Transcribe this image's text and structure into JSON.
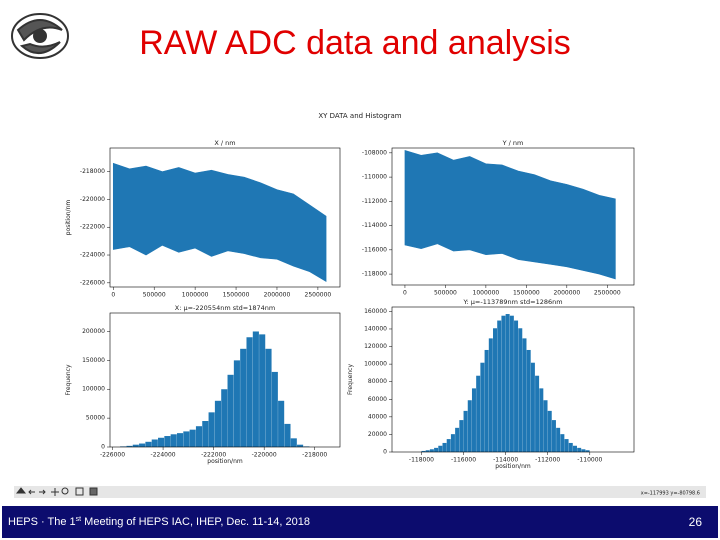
{
  "slide": {
    "title": "RAW ADC data and analysis",
    "footer": {
      "before": "HEPS · The 1",
      "sup": "st",
      "after": " Meeting of HEPS IAC, IHEP, Dec. 11-14, 2018"
    },
    "page": "26"
  },
  "figure": {
    "title": "XY DATA and Histogram",
    "status": "x=-117993  y=-80798.6"
  },
  "chart_data": [
    {
      "type": "band",
      "title": "X / nm",
      "ylabel": "position/nm",
      "color": "#1f77b4",
      "x": [
        0,
        200000,
        400000,
        600000,
        800000,
        1000000,
        1200000,
        1400000,
        1600000,
        1800000,
        2000000,
        2200000,
        2400000,
        2600000
      ],
      "upper": [
        -217400,
        -217800,
        -217600,
        -218000,
        -217700,
        -218100,
        -217900,
        -218200,
        -218400,
        -218800,
        -219300,
        -219600,
        -220400,
        -221200
      ],
      "lower": [
        -223600,
        -223400,
        -224000,
        -223300,
        -223800,
        -223500,
        -224100,
        -223700,
        -223900,
        -224200,
        -224300,
        -224800,
        -225200,
        -225900
      ],
      "xlim": [
        -40000,
        2770000
      ],
      "ylim": [
        -226300,
        -216300
      ],
      "xticks": [
        0,
        500000,
        1000000,
        1500000,
        2000000,
        2500000
      ],
      "yticks": [
        -218000,
        -220000,
        -222000,
        -224000,
        -226000
      ]
    },
    {
      "type": "band",
      "title": "Y / nm",
      "color": "#1f77b4",
      "x": [
        0,
        200000,
        400000,
        600000,
        800000,
        1000000,
        1200000,
        1400000,
        1600000,
        1800000,
        2000000,
        2200000,
        2400000,
        2600000
      ],
      "upper": [
        -107800,
        -108200,
        -108000,
        -108600,
        -108300,
        -108900,
        -109000,
        -109500,
        -109800,
        -110300,
        -110600,
        -111000,
        -111500,
        -111800
      ],
      "lower": [
        -115600,
        -115900,
        -115500,
        -116100,
        -116000,
        -116400,
        -116300,
        -116800,
        -117000,
        -117200,
        -117400,
        -117700,
        -118000,
        -118400
      ],
      "xlim": [
        -160000,
        2830000
      ],
      "ylim": [
        -118900,
        -107600
      ],
      "xticks": [
        0,
        500000,
        1000000,
        1500000,
        2000000,
        2500000
      ],
      "yticks": [
        -108000,
        -110000,
        -112000,
        -114000,
        -116000,
        -118000
      ]
    },
    {
      "type": "histogram",
      "title": "X: μ=-220554nm std=1874nm",
      "xlabel": "position/nm",
      "ylabel": "Frequency",
      "color": "#1f77b4",
      "bins": [
        -225700,
        -225450,
        -225200,
        -224950,
        -224700,
        -224450,
        -224200,
        -223950,
        -223700,
        -223450,
        -223200,
        -222950,
        -222700,
        -222450,
        -222200,
        -221950,
        -221700,
        -221450,
        -221200,
        -220950,
        -220700,
        -220450,
        -220200,
        -219950,
        -219700,
        -219450,
        -219200,
        -218950,
        -218700,
        -218450,
        -218200
      ],
      "values": [
        1000,
        2000,
        4000,
        6000,
        9000,
        13000,
        16000,
        19000,
        22000,
        24000,
        27000,
        30000,
        36000,
        45000,
        60000,
        80000,
        100000,
        125000,
        150000,
        170000,
        190000,
        200000,
        195000,
        170000,
        130000,
        80000,
        40000,
        15000,
        4000,
        1000
      ],
      "xlim": [
        -226100,
        -217000
      ],
      "ylim": [
        0,
        232000
      ],
      "xticks": [
        -226000,
        -224000,
        -222000,
        -220000,
        -218000
      ],
      "yticks": [
        0,
        50000,
        100000,
        150000,
        200000
      ]
    },
    {
      "type": "histogram",
      "title": "Y: μ=-113789nm std=1286nm",
      "xlabel": "position/nm",
      "ylabel": "Frequency",
      "color": "#1f77b4",
      "bins": [
        -118000,
        -117800,
        -117600,
        -117400,
        -117200,
        -117000,
        -116800,
        -116600,
        -116400,
        -116200,
        -116000,
        -115800,
        -115600,
        -115400,
        -115200,
        -115000,
        -114800,
        -114600,
        -114400,
        -114200,
        -114000,
        -113800,
        -113600,
        -113400,
        -113200,
        -113000,
        -112800,
        -112600,
        -112400,
        -112200,
        -112000,
        -111800,
        -111600,
        -111400,
        -111200,
        -111000,
        -110800,
        -110600,
        -110400,
        -110200,
        -110000
      ],
      "values": [
        1200,
        2000,
        3100,
        4700,
        7100,
        10300,
        14700,
        20300,
        27500,
        36300,
        46800,
        58900,
        72400,
        86800,
        101600,
        116100,
        129300,
        140800,
        149600,
        155100,
        157000,
        155100,
        149600,
        140800,
        129300,
        116100,
        101600,
        86800,
        72400,
        58900,
        46800,
        36300,
        27500,
        20300,
        14700,
        10300,
        7100,
        4700,
        3100,
        2000
      ],
      "xlim": [
        -119400,
        -107900
      ],
      "ylim": [
        0,
        165000
      ],
      "xticks": [
        -118000,
        -116000,
        -114000,
        -112000,
        -110000
      ],
      "yticks": [
        0,
        20000,
        40000,
        60000,
        80000,
        100000,
        120000,
        140000,
        160000
      ]
    }
  ]
}
